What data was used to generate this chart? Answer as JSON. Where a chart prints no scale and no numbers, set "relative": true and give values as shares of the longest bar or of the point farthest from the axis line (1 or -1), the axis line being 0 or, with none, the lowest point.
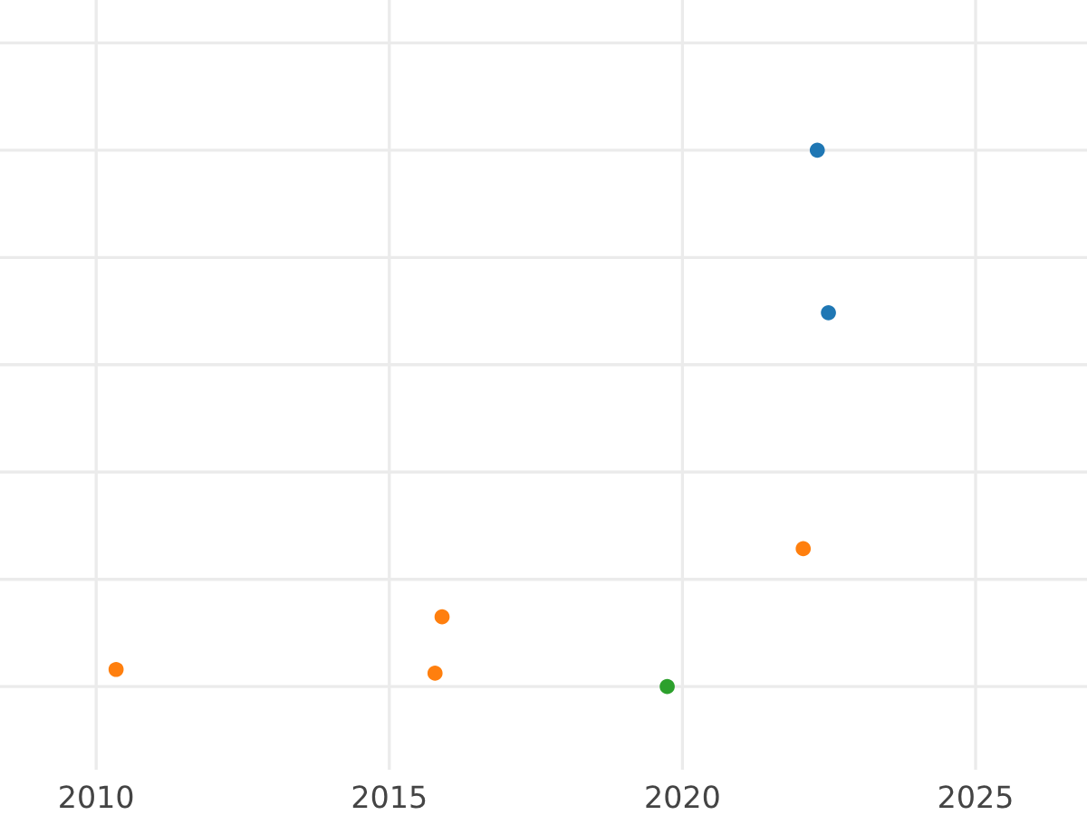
{
  "chart_data": {
    "type": "scatter",
    "relative": true,
    "grid": true,
    "marker": "circle",
    "xlim": [
      2008.36,
      2026.9
    ],
    "xticks": [
      2010,
      2015,
      2020,
      2025
    ],
    "tick_labels": "x",
    "series": [
      {
        "color": "#1f77b4",
        "x": [
          2022.3,
          2022.49
        ],
        "values": [
          1,
          0.697
        ]
      },
      {
        "color": "#ff7f0e",
        "x": [
          2022.06,
          2015.9,
          2010.34,
          2015.78
        ],
        "values": [
          0.257,
          0.13,
          0.032,
          0.025
        ]
      },
      {
        "color": "#2ca02c",
        "x": [
          2019.74
        ],
        "values": [
          0
        ]
      }
    ]
  }
}
